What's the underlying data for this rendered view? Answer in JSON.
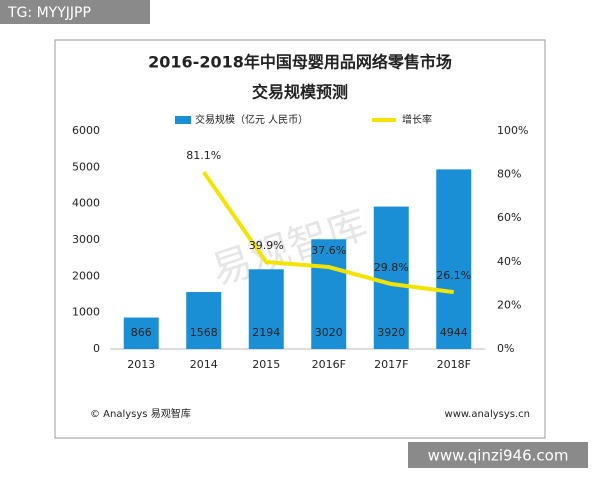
{
  "badge": "TG: MYYJJPP",
  "site": "www.qinzi946.com",
  "chart_data": {
    "type": "bar",
    "title": "2016-2018年中国母婴用品网络零售市场",
    "subtitle": "交易规模预测",
    "watermark": "易观智库",
    "footer_left": "© Analysys 易观智库",
    "footer_right": "www.analysys.cn",
    "categories": [
      "2013",
      "2014",
      "2015",
      "2016F",
      "2017F",
      "2018F"
    ],
    "series": [
      {
        "name": "交易规模（亿元 人民币）",
        "type": "bar",
        "color": "#1b8fd6",
        "values": [
          866,
          1568,
          2194,
          3020,
          3920,
          4944
        ]
      },
      {
        "name": "增长率",
        "type": "line",
        "axis": "y2",
        "color": "#f2e400",
        "values": [
          null,
          81.1,
          39.9,
          37.6,
          29.8,
          26.1
        ],
        "value_labels": [
          null,
          "81.1%",
          "39.9%",
          "37.6%",
          "29.8%",
          "26.1%"
        ]
      }
    ],
    "ylim": [
      0,
      6000
    ],
    "yticks": [
      0,
      1000,
      2000,
      3000,
      4000,
      5000,
      6000
    ],
    "y2lim": [
      0,
      100
    ],
    "y2ticks": [
      {
        "value": 0,
        "label": "0%"
      },
      {
        "value": 20,
        "label": "20%"
      },
      {
        "value": 40,
        "label": "40%"
      },
      {
        "value": 60,
        "label": "60%"
      },
      {
        "value": 80,
        "label": "80%"
      },
      {
        "value": 100,
        "label": "100%"
      }
    ],
    "legend": "top"
  }
}
